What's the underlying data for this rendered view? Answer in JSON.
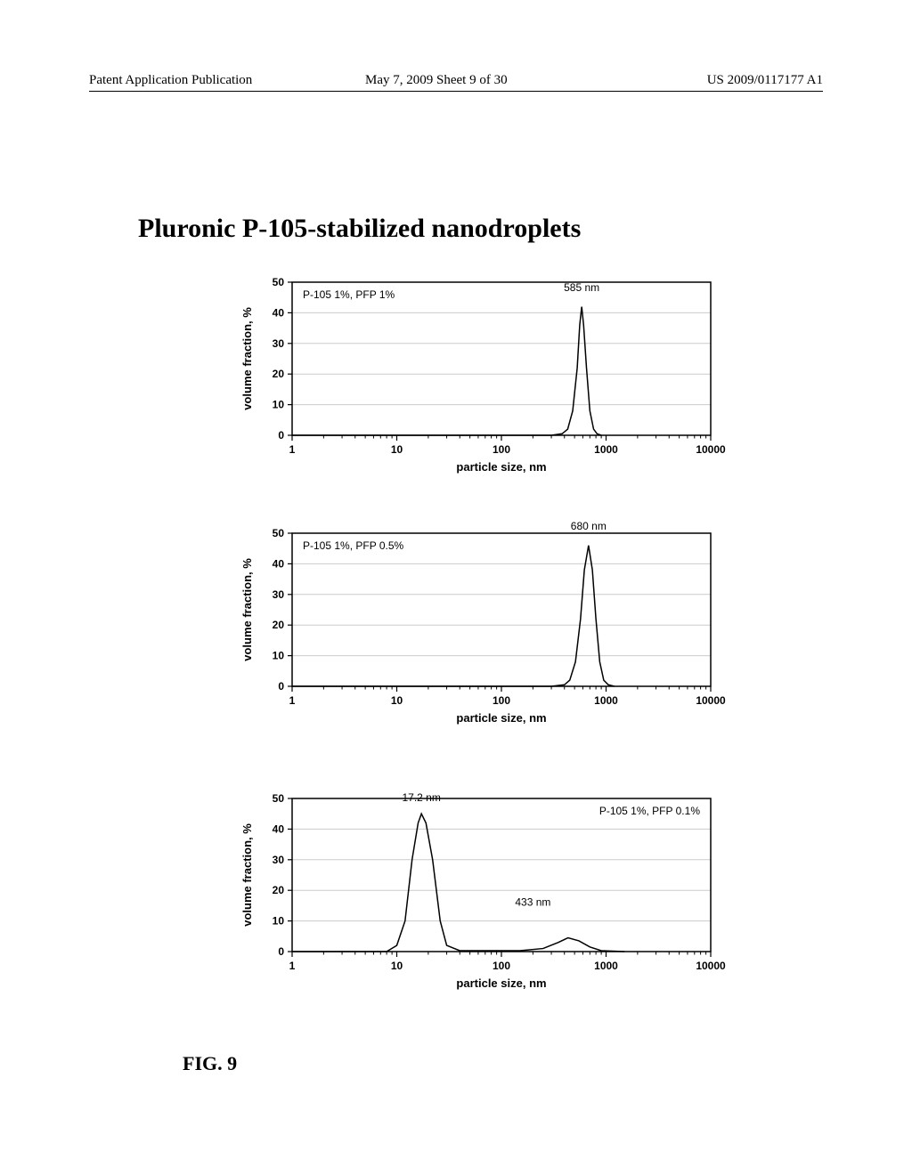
{
  "header": {
    "left": "Patent Application Publication",
    "mid": "May 7, 2009  Sheet 9 of 30",
    "right": "US 2009/0117177 A1"
  },
  "title": "Pluronic P-105-stabilized nanodroplets",
  "figure_label": "FIG. 9",
  "axes": {
    "xlabel": "particle size, nm",
    "ylabel": "volume fraction, %",
    "xticks_log": [
      1,
      10,
      100,
      1000,
      10000
    ],
    "yticks": [
      0,
      10,
      20,
      30,
      40,
      50
    ],
    "ylim": [
      0,
      50
    ],
    "scale": "log",
    "grid_color": "#cccccc",
    "axis_color": "#000000",
    "curve_color": "#000000",
    "curve_width": 1.5,
    "background": "#ffffff",
    "label_fontsize": 13,
    "tick_fontsize": 12,
    "annot_fontsize": 12
  },
  "charts": [
    {
      "legend": "P-105 1%, PFP 1%",
      "legend_pos": "top-left",
      "peak_labels": [
        {
          "text": "585 nm",
          "x_log": 585,
          "y": 46,
          "dx": 0,
          "dy": -4
        }
      ],
      "curve": [
        [
          300,
          0
        ],
        [
          380,
          0.5
        ],
        [
          430,
          2
        ],
        [
          480,
          8
        ],
        [
          530,
          22
        ],
        [
          560,
          36
        ],
        [
          585,
          42
        ],
        [
          610,
          36
        ],
        [
          650,
          22
        ],
        [
          700,
          8
        ],
        [
          760,
          2
        ],
        [
          820,
          0.5
        ],
        [
          900,
          0
        ]
      ]
    },
    {
      "legend": "P-105 1%, PFP 0.5%",
      "legend_pos": "top-left",
      "peak_labels": [
        {
          "text": "680 nm",
          "x_log": 680,
          "y": 50,
          "dx": 0,
          "dy": -4
        }
      ],
      "curve": [
        [
          300,
          0
        ],
        [
          400,
          0.5
        ],
        [
          450,
          2
        ],
        [
          510,
          8
        ],
        [
          570,
          22
        ],
        [
          620,
          38
        ],
        [
          680,
          46
        ],
        [
          740,
          38
        ],
        [
          800,
          22
        ],
        [
          870,
          8
        ],
        [
          950,
          2
        ],
        [
          1050,
          0.5
        ],
        [
          1200,
          0
        ]
      ]
    },
    {
      "legend": "P-105 1%, PFP 0.1%",
      "legend_pos": "top-right",
      "peak_labels": [
        {
          "text": "17.2 nm",
          "x_log": 17.2,
          "y": 48,
          "dx": 0,
          "dy": -4
        },
        {
          "text": "433 nm",
          "x_log": 200,
          "y": 15,
          "dx": 0,
          "dy": 0
        }
      ],
      "curve": [
        [
          8,
          0
        ],
        [
          10,
          2
        ],
        [
          12,
          10
        ],
        [
          14,
          30
        ],
        [
          16,
          42
        ],
        [
          17.2,
          45
        ],
        [
          19,
          42
        ],
        [
          22,
          30
        ],
        [
          26,
          10
        ],
        [
          30,
          2
        ],
        [
          40,
          0.3
        ],
        [
          150,
          0.3
        ],
        [
          250,
          1
        ],
        [
          350,
          3
        ],
        [
          433,
          4.5
        ],
        [
          550,
          3.5
        ],
        [
          700,
          1.5
        ],
        [
          900,
          0.3
        ],
        [
          1500,
          0
        ]
      ]
    }
  ]
}
